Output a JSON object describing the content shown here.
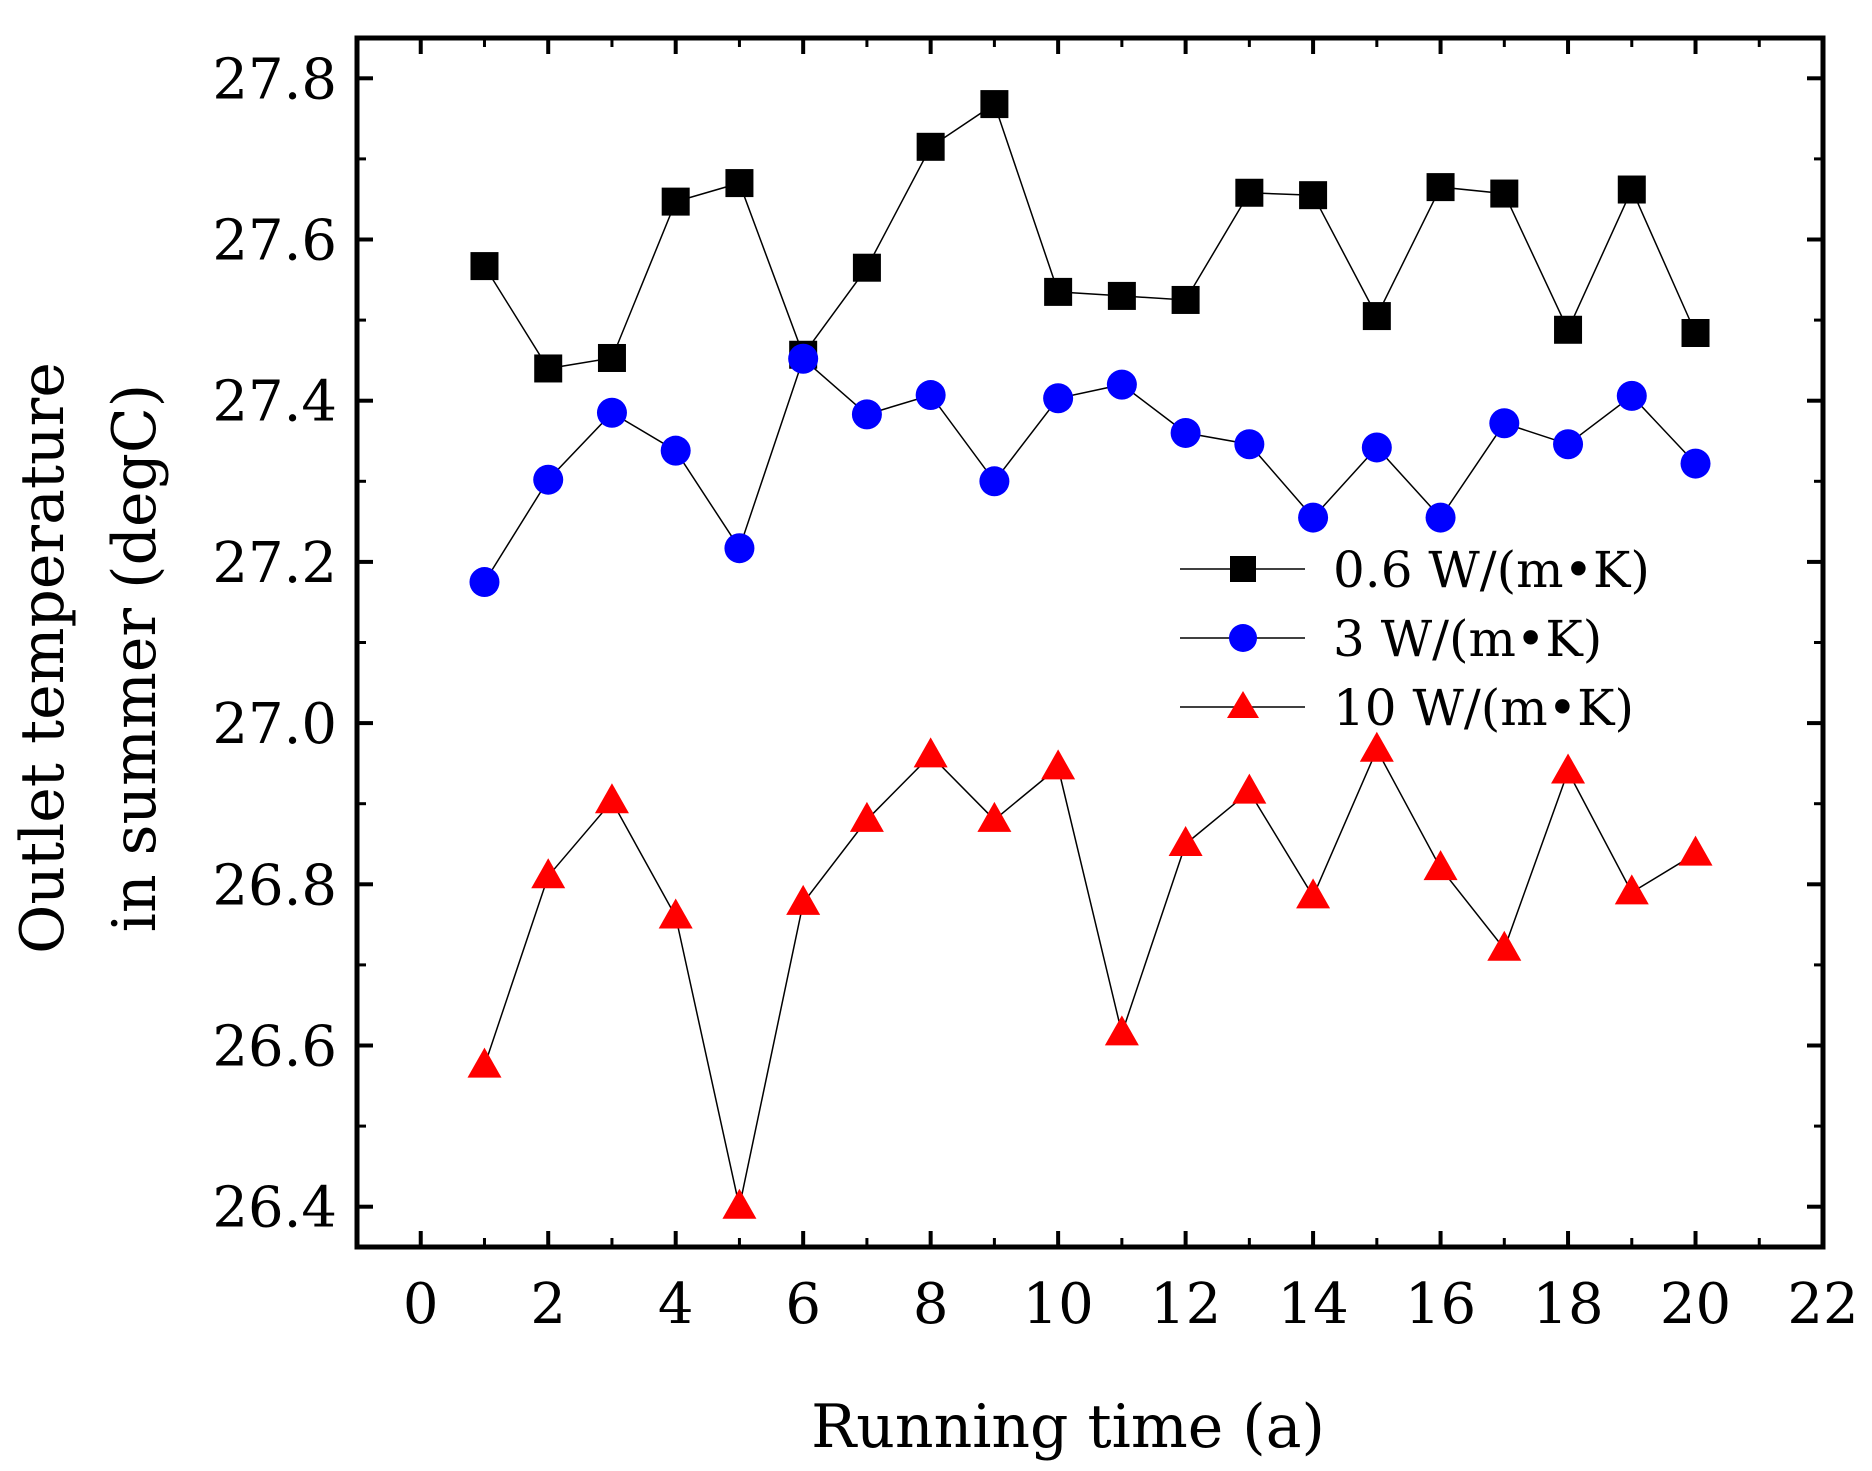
{
  "chart_data": {
    "type": "line",
    "title": "",
    "xlabel": "Running time (a)",
    "ylabel_lines": [
      "Outlet temperature",
      "in summer (degC)"
    ],
    "xlim": [
      -1,
      22
    ],
    "ylim": [
      26.35,
      27.85
    ],
    "xticks": [
      0,
      2,
      4,
      6,
      8,
      10,
      12,
      14,
      16,
      18,
      20,
      22
    ],
    "xtick_labels": [
      "0",
      "2",
      "4",
      "6",
      "8",
      "10",
      "12",
      "14",
      "16",
      "18",
      "20",
      "22"
    ],
    "yticks": [
      26.4,
      26.6,
      26.8,
      27.0,
      27.2,
      27.4,
      27.6,
      27.8
    ],
    "ytick_labels": [
      "26.4",
      "26.6",
      "26.8",
      "27.0",
      "27.2",
      "27.4",
      "27.6",
      "27.8"
    ],
    "grid": false,
    "legend_position": "right-middle",
    "x": [
      1,
      2,
      3,
      4,
      5,
      6,
      7,
      8,
      9,
      10,
      11,
      12,
      13,
      14,
      15,
      16,
      17,
      18,
      19,
      20
    ],
    "series": [
      {
        "name": "0.6 W/(m•K)",
        "marker": "square",
        "color": "#000000",
        "values": [
          27.567,
          27.44,
          27.453,
          27.647,
          27.67,
          27.457,
          27.565,
          27.715,
          27.768,
          27.535,
          27.53,
          27.525,
          27.658,
          27.655,
          27.505,
          27.665,
          27.657,
          27.488,
          27.662,
          27.484
        ]
      },
      {
        "name": "3 W/(m•K)",
        "marker": "circle",
        "color": "#0000ff",
        "values": [
          27.175,
          27.302,
          27.385,
          27.338,
          27.217,
          27.452,
          27.383,
          27.407,
          27.3,
          27.403,
          27.42,
          27.36,
          27.346,
          27.255,
          27.342,
          27.255,
          27.372,
          27.346,
          27.406,
          27.322
        ]
      },
      {
        "name": "10 W/(m•K)",
        "marker": "triangle",
        "color": "#ff0000",
        "values": [
          26.575,
          26.81,
          26.903,
          26.76,
          26.4,
          26.777,
          26.88,
          26.96,
          26.88,
          26.945,
          26.615,
          26.85,
          26.915,
          26.785,
          26.967,
          26.82,
          26.72,
          26.94,
          26.79,
          26.838
        ]
      }
    ]
  }
}
